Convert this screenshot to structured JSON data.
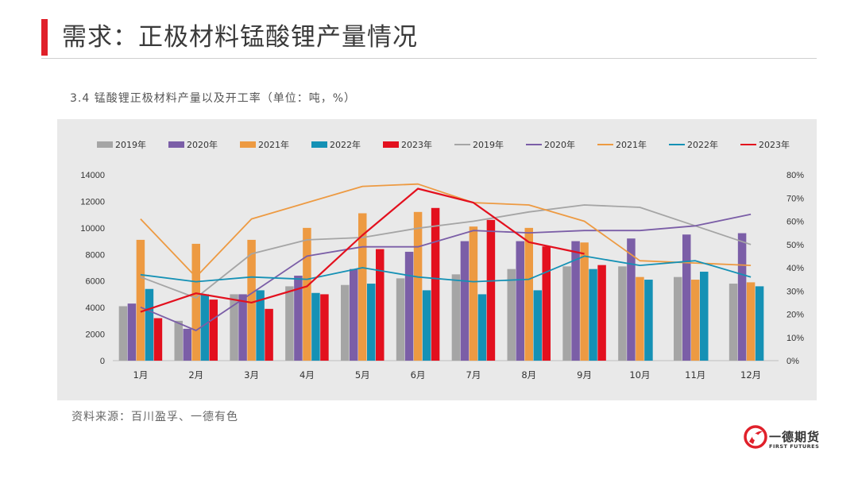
{
  "header": {
    "title": "需求：正极材料锰酸锂产量情况",
    "caption": "3.4 锰酸锂正极材料产量以及开工率（单位：吨，%）"
  },
  "footer": {
    "source": "资料来源：百川盈孚、一德有色",
    "logo_name": "一德期货",
    "logo_sub": "FIRST FUTURES"
  },
  "colors": {
    "accent": "#e0202a",
    "2019": "#a5a5a5",
    "2020": "#7b5ea7",
    "2021": "#ed9a42",
    "2022": "#1591b5",
    "2023": "#e3101e"
  },
  "chart_data": {
    "type": "bar",
    "categories": [
      "1月",
      "2月",
      "3月",
      "4月",
      "5月",
      "6月",
      "7月",
      "8月",
      "9月",
      "10月",
      "11月",
      "12月"
    ],
    "y_left": {
      "min": 0,
      "max": 14000,
      "ticks": [
        "0",
        "2000",
        "4000",
        "6000",
        "8000",
        "10000",
        "12000",
        "14000"
      ]
    },
    "y_right": {
      "min": 0,
      "max": 80,
      "ticks": [
        "0%",
        "10%",
        "20%",
        "30%",
        "40%",
        "50%",
        "60%",
        "70%",
        "80%"
      ]
    },
    "legend_position": "top",
    "bar_series": [
      {
        "name": "2019年",
        "values": [
          4100,
          3000,
          5000,
          5600,
          5700,
          6200,
          6500,
          6900,
          7100,
          7100,
          6300,
          5800
        ]
      },
      {
        "name": "2020年",
        "values": [
          4300,
          2400,
          5000,
          6400,
          6900,
          8200,
          9000,
          9000,
          9000,
          9200,
          9500,
          9600
        ]
      },
      {
        "name": "2021年",
        "values": [
          9100,
          8800,
          9100,
          10000,
          11100,
          11200,
          10100,
          10000,
          8900,
          6300,
          6100,
          5900
        ]
      },
      {
        "name": "2022年",
        "values": [
          5400,
          5000,
          5300,
          5100,
          5800,
          5300,
          5000,
          5300,
          6900,
          6100,
          6700,
          5600
        ]
      },
      {
        "name": "2023年",
        "values": [
          3200,
          4600,
          3900,
          5000,
          8400,
          11500,
          10600,
          8600,
          7200,
          null,
          null,
          null
        ]
      }
    ],
    "line_series": [
      {
        "name": "2019年",
        "values": [
          36,
          27,
          46,
          52,
          53,
          57,
          60,
          64,
          67,
          66,
          58,
          50
        ]
      },
      {
        "name": "2020年",
        "values": [
          23,
          13,
          29,
          45,
          49,
          49,
          56,
          55,
          56,
          56,
          58,
          63
        ]
      },
      {
        "name": "2021年",
        "values": [
          61,
          36,
          61,
          68,
          75,
          76,
          68,
          67,
          60,
          43,
          42,
          41
        ]
      },
      {
        "name": "2022年",
        "values": [
          37,
          34,
          36,
          35,
          40,
          36,
          34,
          35,
          45,
          41,
          43,
          36
        ]
      },
      {
        "name": "2023年",
        "values": [
          21,
          29,
          25,
          32,
          54,
          74,
          68,
          51,
          46,
          null,
          null,
          null
        ]
      }
    ]
  }
}
